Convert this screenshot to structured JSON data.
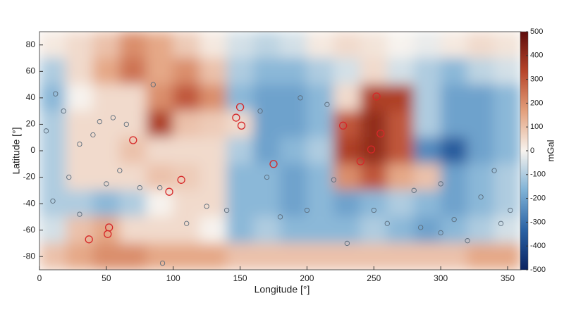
{
  "chart_data": {
    "type": "heatmap",
    "xlabel": "Longitude [°]",
    "ylabel": "Latitude [°]",
    "colorbar_label": "mGal",
    "xlim": [
      0,
      360
    ],
    "ylim": [
      -90,
      90
    ],
    "zlim": [
      -500,
      500
    ],
    "xticks": [
      0,
      50,
      100,
      150,
      200,
      250,
      300,
      350
    ],
    "yticks": [
      -80,
      -60,
      -40,
      -20,
      0,
      20,
      40,
      60,
      80
    ],
    "zticks": [
      -500,
      -400,
      -300,
      -200,
      -100,
      0,
      100,
      200,
      300,
      400,
      500
    ],
    "colorscale": [
      "#0b2361",
      "#2a62a4",
      "#7fb2d6",
      "#f7f3ee",
      "#e3a07c",
      "#b7452a",
      "#5e0c0c"
    ],
    "x": [
      10,
      30,
      50,
      70,
      90,
      110,
      130,
      150,
      170,
      190,
      210,
      230,
      250,
      270,
      290,
      310,
      330,
      350
    ],
    "y": [
      80,
      60,
      40,
      20,
      0,
      -20,
      -40,
      -60,
      -80
    ],
    "z": [
      [
        20,
        50,
        100,
        200,
        150,
        80,
        20,
        -50,
        -80,
        -50,
        20,
        50,
        30,
        0,
        -20,
        20,
        50,
        30
      ],
      [
        -100,
        50,
        150,
        250,
        150,
        200,
        100,
        -100,
        -150,
        -150,
        -100,
        -50,
        50,
        -50,
        -100,
        -150,
        -80,
        -50
      ],
      [
        -150,
        0,
        50,
        50,
        200,
        300,
        200,
        -150,
        -200,
        -200,
        -150,
        50,
        350,
        350,
        -100,
        -200,
        -200,
        -150
      ],
      [
        -100,
        50,
        50,
        50,
        350,
        100,
        80,
        50,
        -200,
        -200,
        -150,
        300,
        400,
        300,
        -100,
        -200,
        -200,
        -150
      ],
      [
        -100,
        50,
        50,
        100,
        50,
        50,
        50,
        -100,
        -200,
        -150,
        -100,
        350,
        400,
        300,
        -250,
        -350,
        -200,
        -150
      ],
      [
        -100,
        50,
        50,
        50,
        100,
        80,
        50,
        -150,
        -150,
        -200,
        -150,
        200,
        300,
        150,
        100,
        -200,
        -150,
        -100
      ],
      [
        -100,
        -100,
        -150,
        -100,
        0,
        50,
        50,
        -150,
        -150,
        -200,
        -150,
        -200,
        -150,
        -100,
        -150,
        -200,
        -150,
        -100
      ],
      [
        -50,
        100,
        150,
        50,
        50,
        50,
        0,
        -150,
        -100,
        -150,
        -150,
        -150,
        -100,
        -150,
        -200,
        -150,
        -100,
        -50
      ],
      [
        100,
        150,
        200,
        200,
        150,
        150,
        150,
        100,
        100,
        100,
        100,
        100,
        100,
        100,
        100,
        100,
        150,
        150
      ]
    ],
    "markers": [
      {
        "color": "#d62728",
        "x": [
          70,
          52,
          51,
          37,
          106,
          97,
          147,
          150,
          151,
          175,
          227,
          240,
          248,
          255,
          252
        ],
        "y": [
          8,
          -58,
          -63,
          -67,
          -22,
          -31,
          25,
          33,
          19,
          -10,
          19,
          -8,
          1,
          13,
          41
        ]
      },
      {
        "color": "#5a6b7a",
        "x": [
          5,
          12,
          18,
          22,
          30,
          40,
          50,
          55,
          60,
          75,
          85,
          92,
          110,
          125,
          140,
          165,
          180,
          195,
          200,
          215,
          230,
          260,
          280,
          300,
          310,
          320,
          330,
          345,
          352,
          10,
          30,
          45,
          65,
          90,
          170,
          220,
          250,
          285,
          300,
          340
        ],
        "y": [
          15,
          43,
          30,
          -20,
          5,
          12,
          -25,
          25,
          -15,
          -28,
          50,
          -85,
          -55,
          -42,
          -45,
          30,
          -50,
          40,
          -45,
          35,
          -70,
          -55,
          -30,
          -62,
          -52,
          -68,
          -35,
          -55,
          -45,
          -38,
          -48,
          22,
          20,
          -28,
          -20,
          -22,
          -45,
          -58,
          -25,
          -15
        ]
      }
    ]
  }
}
